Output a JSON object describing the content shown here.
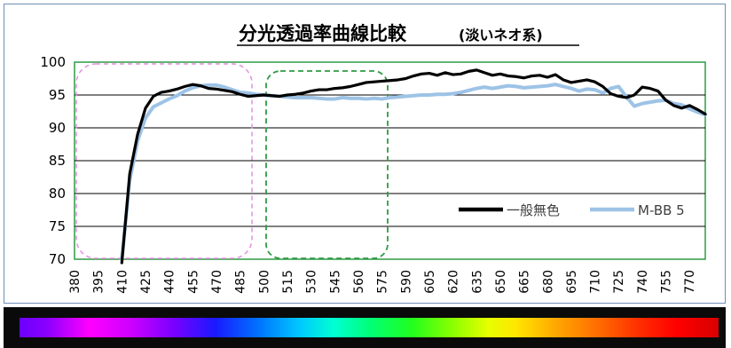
{
  "chart_data": {
    "type": "line",
    "title": "分光透過率曲線比較",
    "subtitle": "(淡いネオ系)",
    "xlabel": "",
    "ylabel": "",
    "x_tick_labels": [
      "380",
      "395",
      "410",
      "425",
      "440",
      "455",
      "470",
      "485",
      "500",
      "515",
      "530",
      "545",
      "560",
      "575",
      "590",
      "605",
      "620",
      "635",
      "650",
      "665",
      "680",
      "695",
      "710",
      "725",
      "740",
      "755",
      "770"
    ],
    "ylim": [
      70,
      100
    ],
    "y_ticks": [
      70,
      75,
      80,
      85,
      90,
      95,
      100
    ],
    "grid": "horizontal",
    "legend_position": "bottom-right",
    "x": [
      380,
      385,
      390,
      395,
      400,
      405,
      410,
      415,
      420,
      425,
      430,
      435,
      440,
      445,
      450,
      455,
      460,
      465,
      470,
      475,
      480,
      485,
      490,
      495,
      500,
      505,
      510,
      515,
      520,
      525,
      530,
      535,
      540,
      545,
      550,
      555,
      560,
      565,
      570,
      575,
      580,
      585,
      590,
      595,
      600,
      605,
      610,
      615,
      620,
      625,
      630,
      635,
      640,
      645,
      650,
      655,
      660,
      665,
      670,
      675,
      680,
      685,
      690,
      695,
      700,
      705,
      710,
      715,
      720,
      725,
      730,
      735,
      740,
      745,
      750,
      755,
      760,
      765,
      770,
      775,
      780
    ],
    "series": [
      {
        "name": "一般無色",
        "color": "#000000",
        "values": [
          null,
          null,
          null,
          null,
          null,
          null,
          65,
          83,
          89,
          93,
          94.8,
          95.4,
          95.6,
          95.9,
          96.3,
          96.6,
          96.4,
          96.0,
          95.9,
          95.7,
          95.5,
          95.1,
          94.8,
          94.9,
          95.0,
          94.9,
          94.8,
          95.0,
          95.1,
          95.3,
          95.6,
          95.8,
          95.8,
          96.0,
          96.1,
          96.3,
          96.6,
          96.9,
          97.0,
          97.1,
          97.2,
          97.3,
          97.5,
          97.9,
          98.2,
          98.3,
          98.0,
          98.4,
          98.1,
          98.2,
          98.6,
          98.8,
          98.4,
          98.0,
          98.2,
          97.9,
          97.8,
          97.6,
          97.9,
          98.0,
          97.7,
          98.1,
          97.3,
          96.9,
          97.1,
          97.3,
          97.0,
          96.3,
          95.2,
          94.8,
          94.6,
          95.0,
          96.2,
          96.0,
          95.6,
          94.2,
          93.4,
          93.0,
          93.4,
          92.8,
          92.1
        ]
      },
      {
        "name": "M-BB 5",
        "color": "#9dc3e6",
        "values": [
          null,
          null,
          null,
          null,
          null,
          null,
          70,
          82,
          88,
          91.5,
          93.2,
          93.8,
          94.4,
          94.9,
          95.6,
          96.1,
          96.4,
          96.5,
          96.5,
          96.2,
          95.8,
          95.4,
          95.3,
          95.1,
          95.0,
          94.9,
          94.8,
          94.7,
          94.6,
          94.6,
          94.6,
          94.5,
          94.4,
          94.4,
          94.6,
          94.5,
          94.5,
          94.4,
          94.5,
          94.4,
          94.6,
          94.7,
          94.8,
          94.9,
          95.0,
          95.0,
          95.1,
          95.1,
          95.2,
          95.4,
          95.7,
          96.0,
          96.2,
          96.0,
          96.2,
          96.4,
          96.3,
          96.1,
          96.2,
          96.3,
          96.4,
          96.6,
          96.3,
          96.0,
          95.6,
          95.9,
          95.8,
          95.3,
          96.0,
          96.3,
          94.7,
          93.3,
          93.7,
          93.9,
          94.1,
          94.2,
          93.7,
          93.5,
          92.9,
          92.4,
          92.0
        ]
      }
    ]
  }
}
